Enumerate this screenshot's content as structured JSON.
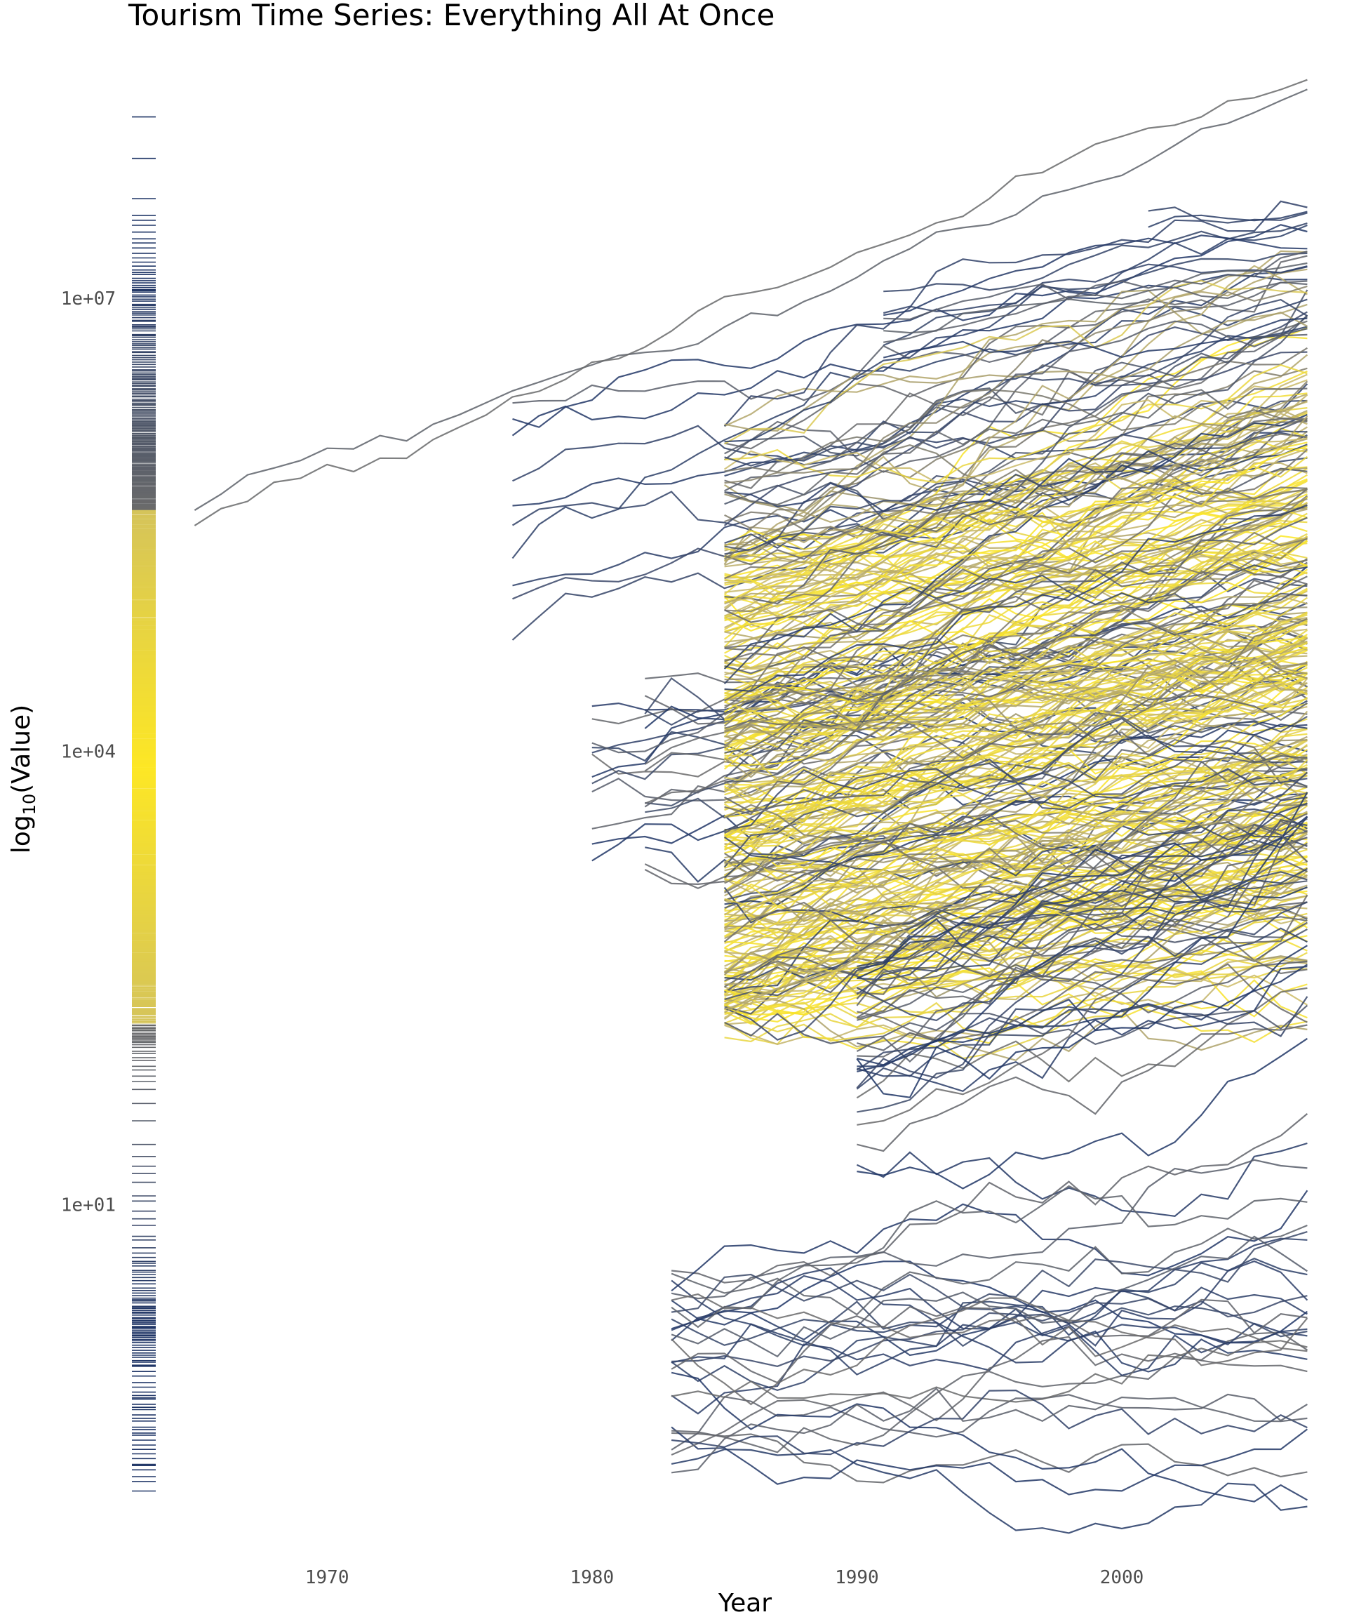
{
  "chart_data": {
    "type": "line",
    "title": "Tourism Time Series: Everything All At Once",
    "xlabel": "Year",
    "ylabel": "log10(Value)",
    "ylabel_parts": {
      "base": "log",
      "sub": "10",
      "rest": "(Value)"
    },
    "y_scale": "log10",
    "xlim": [
      1962.5,
      2008.5
    ],
    "ylim": [
      0.12,
      170000000
    ],
    "x_ticks": [
      1970,
      1980,
      1990,
      2000
    ],
    "x_tick_labels": [
      "1970",
      "1980",
      "1990",
      "2000"
    ],
    "y_ticks": [
      10,
      10000,
      10000000
    ],
    "y_tick_labels": [
      "1e+01",
      "1e+04",
      "1e+07"
    ],
    "grid": false,
    "legend": "none",
    "rug": "left",
    "colors": {
      "low": "#1f3566",
      "mid": "#6b6b6b",
      "high": "#fde725",
      "olive": "#c9b96a"
    },
    "groups": [
      {
        "start": 1965,
        "end": 2007,
        "count": 2,
        "log_min": 4.9,
        "log_max": 6.3,
        "trend": 0.05,
        "noise": 0.04,
        "tone": "dark"
      },
      {
        "start": 1977,
        "end": 2007,
        "count": 10,
        "log_min": 4.0,
        "log_max": 6.5,
        "trend": 0.03,
        "noise": 0.06,
        "tone": "dark"
      },
      {
        "start": 1980,
        "end": 2007,
        "count": 12,
        "log_min": 2.8,
        "log_max": 4.7,
        "trend": 0.03,
        "noise": 0.07,
        "tone": "dark"
      },
      {
        "start": 1982,
        "end": 2007,
        "count": 14,
        "log_min": 3.2,
        "log_max": 4.5,
        "trend": 0.03,
        "noise": 0.08,
        "tone": "dark"
      },
      {
        "start": 1985,
        "end": 2007,
        "count": 200,
        "log_min": 2.1,
        "log_max": 5.4,
        "trend": 0.04,
        "noise": 0.07,
        "tone": "yellow"
      },
      {
        "start": 1985,
        "end": 2007,
        "count": 120,
        "log_min": 2.2,
        "log_max": 6.2,
        "trend": 0.04,
        "noise": 0.08,
        "tone": "mixed"
      },
      {
        "start": 1990,
        "end": 2007,
        "count": 30,
        "log_min": 1.2,
        "log_max": 2.6,
        "trend": 0.05,
        "noise": 0.1,
        "tone": "dark"
      },
      {
        "start": 1991,
        "end": 2007,
        "count": 8,
        "log_min": 6.4,
        "log_max": 7.1,
        "trend": 0.02,
        "noise": 0.04,
        "tone": "dark"
      },
      {
        "start": 2001,
        "end": 2007,
        "count": 2,
        "log_min": 7.4,
        "log_max": 7.6,
        "trend": 0.01,
        "noise": 0.04,
        "tone": "dark"
      },
      {
        "start": 1983,
        "end": 2007,
        "count": 30,
        "log_min": -0.8,
        "log_max": 0.6,
        "trend": 0.01,
        "noise": 0.09,
        "tone": "dark"
      }
    ]
  }
}
